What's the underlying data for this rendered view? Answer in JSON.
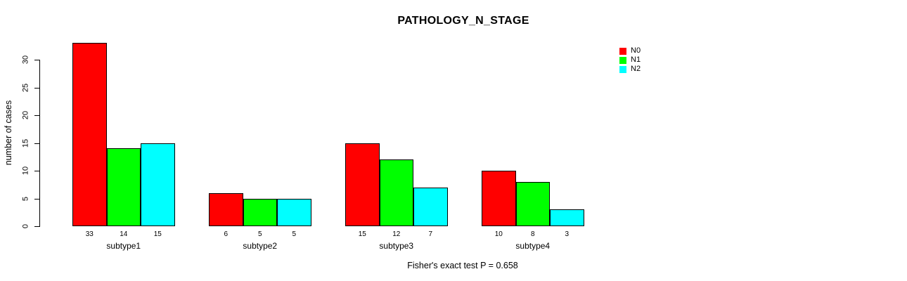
{
  "chart_data": {
    "type": "bar",
    "title": "PATHOLOGY_N_STAGE",
    "ylabel": "number of cases",
    "xlabel": "",
    "categories": [
      "subtype1",
      "subtype2",
      "subtype3",
      "subtype4"
    ],
    "series": [
      {
        "name": "N0",
        "color": "#FF0000",
        "values": [
          33,
          6,
          15,
          10
        ]
      },
      {
        "name": "N1",
        "color": "#00FF00",
        "values": [
          14,
          5,
          12,
          8
        ]
      },
      {
        "name": "N2",
        "color": "#00FFFF",
        "values": [
          15,
          5,
          7,
          3
        ]
      }
    ],
    "yticks": [
      0,
      5,
      10,
      15,
      20,
      25,
      30
    ],
    "ylim": [
      0,
      33
    ],
    "grid": false,
    "legend_position": "top-right",
    "bar_value_labels_shown": true,
    "annotation": "Fisher's exact test P = 0.658"
  },
  "colors": {
    "background": "#FFFFFF",
    "axis": "#000000",
    "bar_border": "#000000",
    "text": "#000000"
  }
}
